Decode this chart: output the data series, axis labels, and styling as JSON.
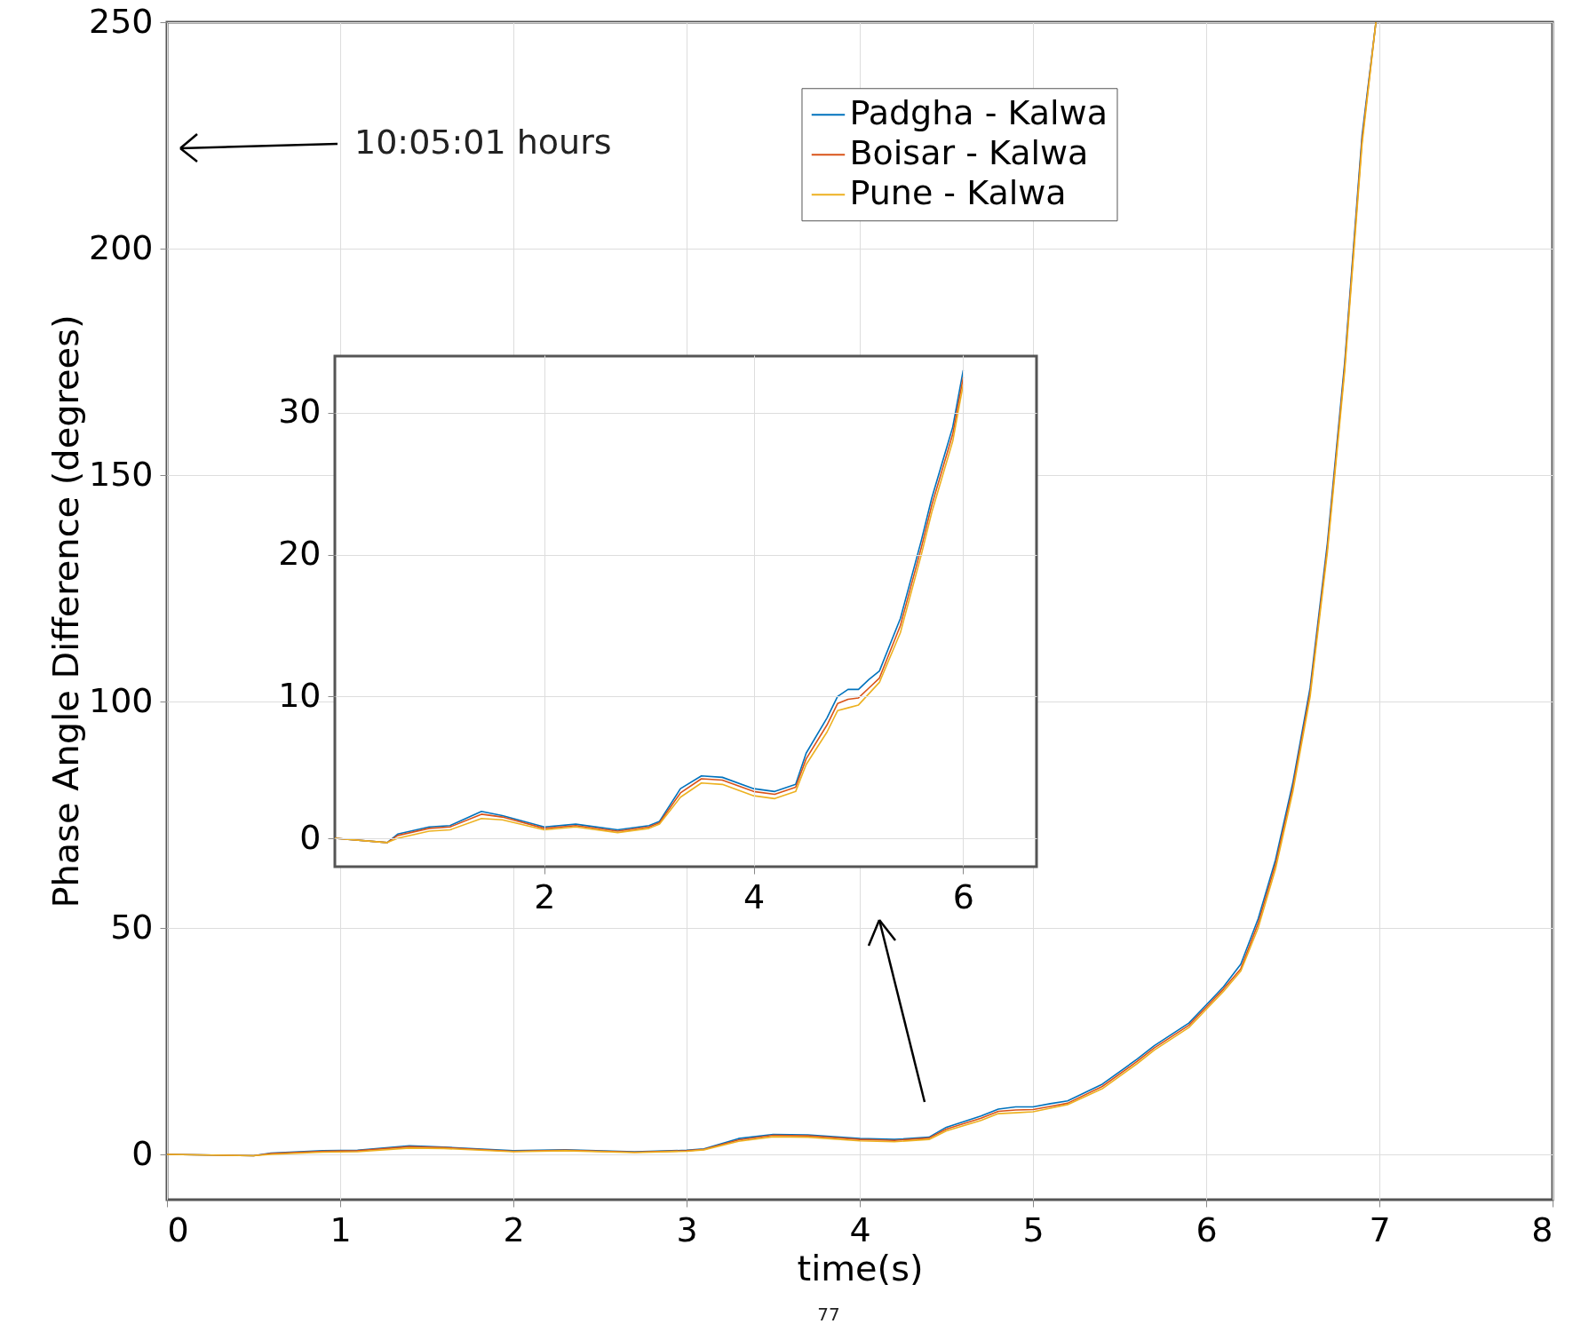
{
  "chart_data": [
    {
      "type": "line",
      "xlabel": "time(s)",
      "ylabel": "Phase Angle Difference (degrees)",
      "xlim": [
        0,
        8
      ],
      "ylim": [
        -10,
        250
      ],
      "xticks": [
        0,
        1,
        2,
        3,
        4,
        5,
        6,
        7,
        8
      ],
      "yticks": [
        0,
        50,
        100,
        150,
        200,
        250
      ],
      "grid": true,
      "legend": "top right",
      "annotations": [
        "10:05:01 hours",
        "77"
      ],
      "x": [
        0,
        0.5,
        0.6,
        0.9,
        1.1,
        1.4,
        1.6,
        2.0,
        2.3,
        2.7,
        3.0,
        3.1,
        3.3,
        3.5,
        3.7,
        4.0,
        4.2,
        4.4,
        4.5,
        4.7,
        4.8,
        4.9,
        5.0,
        5.1,
        5.2,
        5.4,
        5.6,
        5.7,
        5.9,
        6.0,
        6.1,
        6.2,
        6.3,
        6.4,
        6.5,
        6.6,
        6.7,
        6.8,
        6.9,
        6.98
      ],
      "series": [
        {
          "name": "Padgha - Kalwa",
          "color": "#0072bd",
          "values": [
            0,
            -0.3,
            0.3,
            0.8,
            0.9,
            1.9,
            1.6,
            0.8,
            1.0,
            0.6,
            0.9,
            1.2,
            3.5,
            4.4,
            4.3,
            3.5,
            3.3,
            3.8,
            6,
            8.5,
            10,
            10.5,
            10.5,
            11.2,
            11.8,
            15.5,
            21,
            24,
            29,
            33,
            37,
            42,
            52,
            65,
            82,
            103,
            135,
            175,
            225,
            250
          ]
        },
        {
          "name": "Boisar - Kalwa",
          "color": "#d95319",
          "values": [
            0,
            -0.3,
            0.2,
            0.7,
            0.8,
            1.7,
            1.5,
            0.7,
            0.9,
            0.5,
            0.8,
            1.1,
            3.2,
            4.2,
            4.1,
            3.3,
            3.1,
            3.6,
            5.6,
            8,
            9.5,
            9.8,
            9.9,
            10.6,
            11.3,
            15,
            20.5,
            23.5,
            28.5,
            32.5,
            36.5,
            41,
            51,
            64,
            81,
            102,
            134,
            174,
            224,
            250
          ]
        },
        {
          "name": "Pune - Kalwa",
          "color": "#edb120",
          "values": [
            0,
            -0.3,
            0,
            0.5,
            0.6,
            1.4,
            1.3,
            0.6,
            0.8,
            0.4,
            0.7,
            1.0,
            2.9,
            3.9,
            3.8,
            3.0,
            2.8,
            3.3,
            5.2,
            7.5,
            9,
            9.2,
            9.4,
            10.2,
            11,
            14.5,
            20,
            23,
            28,
            32,
            36,
            40.5,
            50,
            63,
            80,
            101,
            133,
            173,
            223,
            250
          ]
        }
      ]
    },
    {
      "type": "line",
      "xlim": [
        0,
        6.7
      ],
      "ylim": [
        -2,
        34
      ],
      "xticks": [
        2,
        4,
        6
      ],
      "yticks": [
        0,
        10,
        20,
        30
      ],
      "grid": true,
      "x": [
        0,
        0.5,
        0.6,
        0.9,
        1.1,
        1.4,
        1.6,
        2.0,
        2.3,
        2.7,
        3.0,
        3.1,
        3.3,
        3.5,
        3.7,
        4.0,
        4.2,
        4.4,
        4.5,
        4.7,
        4.8,
        4.9,
        5.0,
        5.1,
        5.2,
        5.4,
        5.6,
        5.7,
        5.9,
        6.0
      ],
      "series": [
        {
          "color": "#0072bd",
          "values": [
            0,
            -0.3,
            0.3,
            0.8,
            0.9,
            1.9,
            1.6,
            0.8,
            1.0,
            0.6,
            0.9,
            1.2,
            3.5,
            4.4,
            4.3,
            3.5,
            3.3,
            3.8,
            6,
            8.5,
            10,
            10.5,
            10.5,
            11.2,
            11.8,
            15.5,
            21,
            24,
            29,
            33
          ]
        },
        {
          "color": "#d95319",
          "values": [
            0,
            -0.3,
            0.2,
            0.7,
            0.8,
            1.7,
            1.5,
            0.7,
            0.9,
            0.5,
            0.8,
            1.1,
            3.2,
            4.2,
            4.1,
            3.3,
            3.1,
            3.6,
            5.6,
            8,
            9.5,
            9.8,
            9.9,
            10.6,
            11.3,
            15,
            20.5,
            23.5,
            28.5,
            32.5
          ]
        },
        {
          "color": "#edb120",
          "values": [
            0,
            -0.3,
            0,
            0.5,
            0.6,
            1.4,
            1.3,
            0.6,
            0.8,
            0.4,
            0.7,
            1.0,
            2.9,
            3.9,
            3.8,
            3.0,
            2.8,
            3.3,
            5.2,
            7.5,
            9,
            9.2,
            9.4,
            10.2,
            11,
            14.5,
            20,
            23,
            28,
            32
          ]
        }
      ]
    }
  ]
}
